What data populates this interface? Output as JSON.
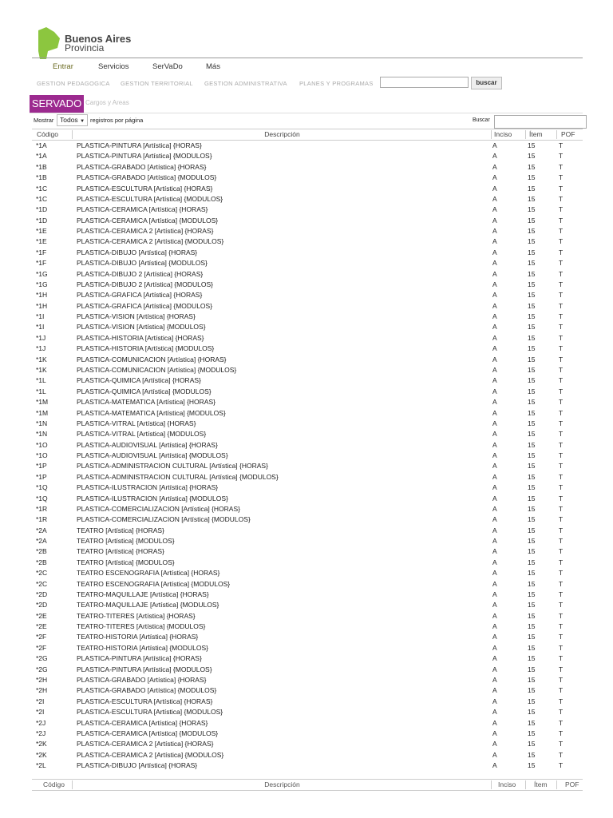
{
  "brand": {
    "line1": "Buenos Aires",
    "line2": "Provincia",
    "color": "#8cc63f"
  },
  "nav": [
    "Entrar",
    "Servicios",
    "SerVaDo",
    "Más"
  ],
  "gestion": [
    "GESTION PEDAGOGICA",
    "GESTION TERRITORIAL",
    "GESTION ADMINISTRATIVA",
    "PLANES Y PROGRAMAS"
  ],
  "search": {
    "value": "",
    "button": "buscar"
  },
  "section": {
    "badge": "SERVADO",
    "crumb": "Cargos y Areas",
    "badge_color": "#9c2a8f"
  },
  "toolbar": {
    "show_label": "Mostrar",
    "show_value": "Todos",
    "per_page": "registros por página",
    "search_label": "Buscar",
    "search_value": ""
  },
  "table": {
    "headers": [
      "Código",
      "Descripción",
      "Inciso",
      "Ítem",
      "POF"
    ],
    "rows": [
      [
        "*1A",
        "PLASTICA-PINTURA [Artística] {HORAS}",
        "A",
        "15",
        "T"
      ],
      [
        "*1A",
        "PLASTICA-PINTURA [Artística] {MODULOS}",
        "A",
        "15",
        "T"
      ],
      [
        "*1B",
        "PLASTICA-GRABADO [Artística] {HORAS}",
        "A",
        "15",
        "T"
      ],
      [
        "*1B",
        "PLASTICA-GRABADO [Artística] {MODULOS}",
        "A",
        "15",
        "T"
      ],
      [
        "*1C",
        "PLASTICA-ESCULTURA [Artística] {HORAS}",
        "A",
        "15",
        "T"
      ],
      [
        "*1C",
        "PLASTICA-ESCULTURA [Artística] {MODULOS}",
        "A",
        "15",
        "T"
      ],
      [
        "*1D",
        "PLASTICA-CERAMICA [Artística] {HORAS}",
        "A",
        "15",
        "T"
      ],
      [
        "*1D",
        "PLASTICA-CERAMICA [Artística] {MODULOS}",
        "A",
        "15",
        "T"
      ],
      [
        "*1E",
        "PLASTICA-CERAMICA 2 [Artística] {HORAS}",
        "A",
        "15",
        "T"
      ],
      [
        "*1E",
        "PLASTICA-CERAMICA 2 [Artística] {MODULOS}",
        "A",
        "15",
        "T"
      ],
      [
        "*1F",
        "PLASTICA-DIBUJO [Artística] {HORAS}",
        "A",
        "15",
        "T"
      ],
      [
        "*1F",
        "PLASTICA-DIBUJO [Artística] {MODULOS}",
        "A",
        "15",
        "T"
      ],
      [
        "*1G",
        "PLASTICA-DIBUJO 2 [Artística] {HORAS}",
        "A",
        "15",
        "T"
      ],
      [
        "*1G",
        "PLASTICA-DIBUJO 2 [Artística] {MODULOS}",
        "A",
        "15",
        "T"
      ],
      [
        "*1H",
        "PLASTICA-GRAFICA [Artística] {HORAS}",
        "A",
        "15",
        "T"
      ],
      [
        "*1H",
        "PLASTICA-GRAFICA [Artística] {MODULOS}",
        "A",
        "15",
        "T"
      ],
      [
        "*1I",
        "PLASTICA-VISION [Artística] {HORAS}",
        "A",
        "15",
        "T"
      ],
      [
        "*1I",
        "PLASTICA-VISION [Artística] {MODULOS}",
        "A",
        "15",
        "T"
      ],
      [
        "*1J",
        "PLASTICA-HISTORIA [Artística] {HORAS}",
        "A",
        "15",
        "T"
      ],
      [
        "*1J",
        "PLASTICA-HISTORIA [Artística] {MODULOS}",
        "A",
        "15",
        "T"
      ],
      [
        "*1K",
        "PLASTICA-COMUNICACION [Artística] {HORAS}",
        "A",
        "15",
        "T"
      ],
      [
        "*1K",
        "PLASTICA-COMUNICACION [Artística] {MODULOS}",
        "A",
        "15",
        "T"
      ],
      [
        "*1L",
        "PLASTICA-QUIMICA [Artística] {HORAS}",
        "A",
        "15",
        "T"
      ],
      [
        "*1L",
        "PLASTICA-QUIMICA [Artística] {MODULOS}",
        "A",
        "15",
        "T"
      ],
      [
        "*1M",
        "PLASTICA-MATEMATICA [Artística] {HORAS}",
        "A",
        "15",
        "T"
      ],
      [
        "*1M",
        "PLASTICA-MATEMATICA [Artística] {MODULOS}",
        "A",
        "15",
        "T"
      ],
      [
        "*1N",
        "PLASTICA-VITRAL [Artística] {HORAS}",
        "A",
        "15",
        "T"
      ],
      [
        "*1N",
        "PLASTICA-VITRAL [Artística] {MODULOS}",
        "A",
        "15",
        "T"
      ],
      [
        "*1O",
        "PLASTICA-AUDIOVISUAL [Artística] {HORAS}",
        "A",
        "15",
        "T"
      ],
      [
        "*1O",
        "PLASTICA-AUDIOVISUAL [Artística] {MODULOS}",
        "A",
        "15",
        "T"
      ],
      [
        "*1P",
        "PLASTICA-ADMINISTRACION CULTURAL [Artística] {HORAS}",
        "A",
        "15",
        "T"
      ],
      [
        "*1P",
        "PLASTICA-ADMINISTRACION CULTURAL [Artística] {MODULOS}",
        "A",
        "15",
        "T"
      ],
      [
        "*1Q",
        "PLASTICA-ILUSTRACION [Artística] {HORAS}",
        "A",
        "15",
        "T"
      ],
      [
        "*1Q",
        "PLASTICA-ILUSTRACION [Artística] {MODULOS}",
        "A",
        "15",
        "T"
      ],
      [
        "*1R",
        "PLASTICA-COMERCIALIZACION [Artística] {HORAS}",
        "A",
        "15",
        "T"
      ],
      [
        "*1R",
        "PLASTICA-COMERCIALIZACION [Artística] {MODULOS}",
        "A",
        "15",
        "T"
      ],
      [
        "*2A",
        "TEATRO [Artística] {HORAS}",
        "A",
        "15",
        "T"
      ],
      [
        "*2A",
        "TEATRO [Artística] {MODULOS}",
        "A",
        "15",
        "T"
      ],
      [
        "*2B",
        "TEATRO [Artística] {HORAS}",
        "A",
        "15",
        "T"
      ],
      [
        "*2B",
        "TEATRO [Artística] {MODULOS}",
        "A",
        "15",
        "T"
      ],
      [
        "*2C",
        "TEATRO ESCENOGRAFIA [Artística] {HORAS}",
        "A",
        "15",
        "T"
      ],
      [
        "*2C",
        "TEATRO ESCENOGRAFIA [Artística] {MODULOS}",
        "A",
        "15",
        "T"
      ],
      [
        "*2D",
        "TEATRO-MAQUILLAJE [Artística] {HORAS}",
        "A",
        "15",
        "T"
      ],
      [
        "*2D",
        "TEATRO-MAQUILLAJE [Artística] {MODULOS}",
        "A",
        "15",
        "T"
      ],
      [
        "*2E",
        "TEATRO-TITERES [Artística] {HORAS}",
        "A",
        "15",
        "T"
      ],
      [
        "*2E",
        "TEATRO-TITERES [Artística] {MODULOS}",
        "A",
        "15",
        "T"
      ],
      [
        "*2F",
        "TEATRO-HISTORIA [Artística] {HORAS}",
        "A",
        "15",
        "T"
      ],
      [
        "*2F",
        "TEATRO-HISTORIA [Artística] {MODULOS}",
        "A",
        "15",
        "T"
      ],
      [
        "*2G",
        "PLASTICA-PINTURA [Artística] {HORAS}",
        "A",
        "15",
        "T"
      ],
      [
        "*2G",
        "PLASTICA-PINTURA [Artística] {MODULOS}",
        "A",
        "15",
        "T"
      ],
      [
        "*2H",
        "PLASTICA-GRABADO [Artística] {HORAS}",
        "A",
        "15",
        "T"
      ],
      [
        "*2H",
        "PLASTICA-GRABADO [Artística] {MODULOS}",
        "A",
        "15",
        "T"
      ],
      [
        "*2I",
        "PLASTICA-ESCULTURA [Artística] {HORAS}",
        "A",
        "15",
        "T"
      ],
      [
        "*2I",
        "PLASTICA-ESCULTURA [Artística] {MODULOS}",
        "A",
        "15",
        "T"
      ],
      [
        "*2J",
        "PLASTICA-CERAMICA [Artística] {HORAS}",
        "A",
        "15",
        "T"
      ],
      [
        "*2J",
        "PLASTICA-CERAMICA [Artística] {MODULOS}",
        "A",
        "15",
        "T"
      ],
      [
        "*2K",
        "PLASTICA-CERAMICA 2 [Artística] {HORAS}",
        "A",
        "15",
        "T"
      ],
      [
        "*2K",
        "PLASTICA-CERAMICA 2 [Artística] {MODULOS}",
        "A",
        "15",
        "T"
      ],
      [
        "*2L",
        "PLASTICA-DIBUJO [Artística] {HORAS}",
        "A",
        "15",
        "T"
      ]
    ]
  }
}
